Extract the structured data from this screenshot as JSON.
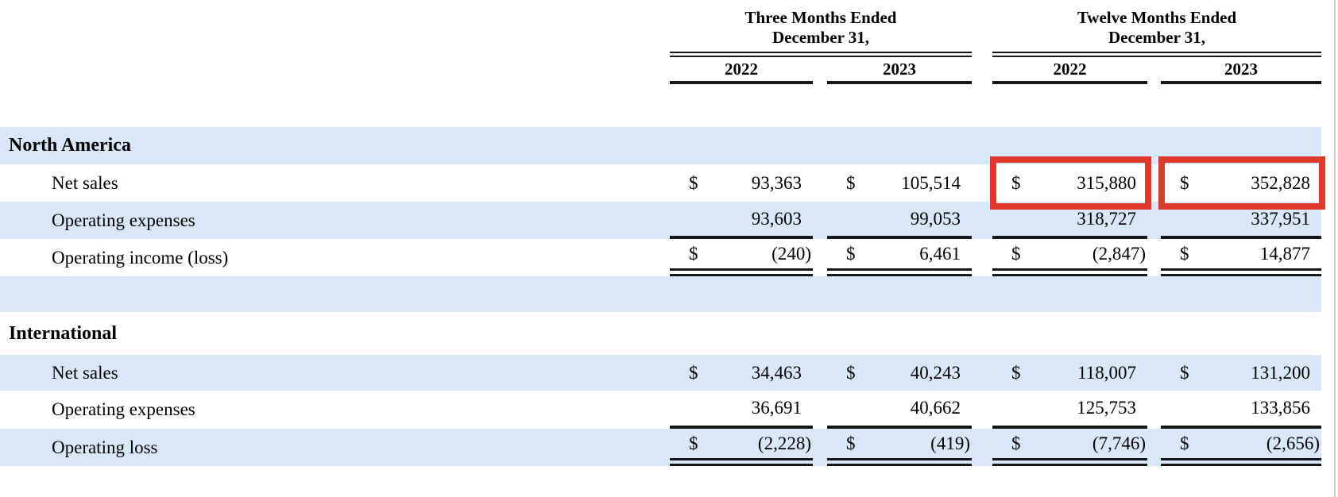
{
  "table": {
    "col_groups": [
      {
        "title_line1": "Three Months Ended",
        "title_line2": "December 31,",
        "years": [
          "2022",
          "2023"
        ]
      },
      {
        "title_line1": "Twelve Months Ended",
        "title_line2": "December 31,",
        "years": [
          "2022",
          "2023"
        ]
      }
    ],
    "sections": [
      {
        "name": "North America",
        "rows": [
          {
            "label": "Net sales",
            "cells": [
              {
                "cur": "$",
                "amt": "93,363"
              },
              {
                "cur": "$",
                "amt": "105,514"
              },
              {
                "cur": "$",
                "amt": "315,880"
              },
              {
                "cur": "$",
                "amt": "352,828"
              }
            ]
          },
          {
            "label": "Operating expenses",
            "cells": [
              {
                "cur": "",
                "amt": "93,603"
              },
              {
                "cur": "",
                "amt": "99,053"
              },
              {
                "cur": "",
                "amt": "318,727"
              },
              {
                "cur": "",
                "amt": "337,951"
              }
            ]
          },
          {
            "label": "Operating income (loss)",
            "cells": [
              {
                "cur": "$",
                "amt": "(240)"
              },
              {
                "cur": "$",
                "amt": "6,461"
              },
              {
                "cur": "$",
                "amt": "(2,847)"
              },
              {
                "cur": "$",
                "amt": "14,877"
              }
            ]
          }
        ]
      },
      {
        "name": "International",
        "rows": [
          {
            "label": "Net sales",
            "cells": [
              {
                "cur": "$",
                "amt": "34,463"
              },
              {
                "cur": "$",
                "amt": "40,243"
              },
              {
                "cur": "$",
                "amt": "118,007"
              },
              {
                "cur": "$",
                "amt": "131,200"
              }
            ]
          },
          {
            "label": "Operating expenses",
            "cells": [
              {
                "cur": "",
                "amt": "36,691"
              },
              {
                "cur": "",
                "amt": "40,662"
              },
              {
                "cur": "",
                "amt": "125,753"
              },
              {
                "cur": "",
                "amt": "133,856"
              }
            ]
          },
          {
            "label": "Operating loss",
            "cells": [
              {
                "cur": "$",
                "amt": "(2,228)"
              },
              {
                "cur": "$",
                "amt": "(419)"
              },
              {
                "cur": "$",
                "amt": "(7,746)"
              },
              {
                "cur": "$",
                "amt": "(2,656)"
              }
            ]
          }
        ]
      }
    ],
    "annotations": {
      "highlighted_values": [
        "315,880",
        "352,828"
      ],
      "highlight_meaning": "North America Net sales, Twelve Months Ended December 31 2022 and 2023",
      "highlight_color": "#e0392b"
    },
    "stripe_color": "#d9e8f8"
  }
}
